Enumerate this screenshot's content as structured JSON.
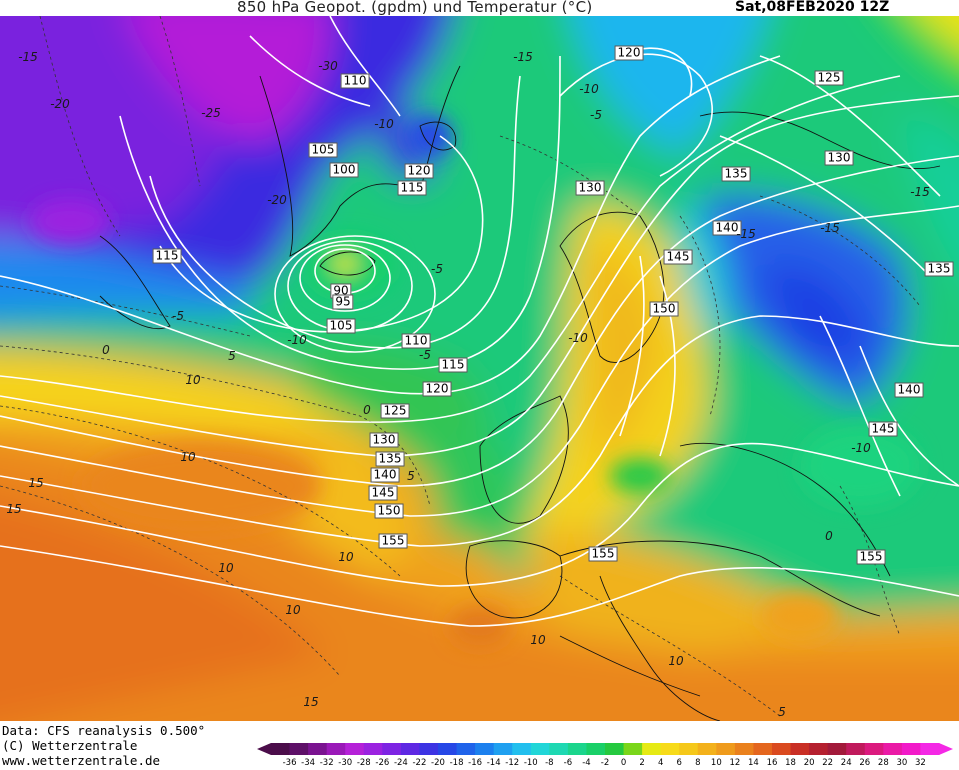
{
  "header": {
    "title": "850 hPa Geopot. (gpdm) und Temperatur (°C)",
    "date": "Sat,08FEB2020 12Z"
  },
  "footer": {
    "line1": "Data: CFS reanalysis 0.500°",
    "line2": "(C) Wetterzentrale",
    "line3": "www.wetterzentrale.de"
  },
  "legend": {
    "ticks": [
      "-36",
      "-34",
      "-32",
      "-30",
      "-28",
      "-26",
      "-24",
      "-22",
      "-20",
      "-18",
      "-16",
      "-14",
      "-12",
      "-10",
      "-8",
      "-6",
      "-4",
      "-2",
      "0",
      "2",
      "4",
      "6",
      "8",
      "10",
      "12",
      "14",
      "16",
      "18",
      "20",
      "22",
      "24",
      "26",
      "28",
      "30",
      "32"
    ],
    "colors": [
      "#4b0d4a",
      "#5e1068",
      "#7a1390",
      "#9a19b8",
      "#b521d8",
      "#9b22e0",
      "#7d24e3",
      "#5e28e3",
      "#3c33e3",
      "#2647e6",
      "#1f63ea",
      "#1c80ee",
      "#1fa0f0",
      "#22bfee",
      "#21d6d8",
      "#1ed8b2",
      "#1bd58c",
      "#19d068",
      "#25c93f",
      "#7ad61a",
      "#e6ea14",
      "#f7db1a",
      "#f5c81a",
      "#f3b11b",
      "#ef9b1c",
      "#ea811d",
      "#e4661e",
      "#da4a1f",
      "#c92f25",
      "#b5202f",
      "#a21a3a",
      "#c01a5c",
      "#db1a7e",
      "#ea1aa6",
      "#f21ac9",
      "#f428e5"
    ]
  },
  "map": {
    "heights": [
      {
        "text": "120",
        "pos": "n-atlantic-120"
      },
      {
        "text": "110",
        "pos": "greenland-110"
      },
      {
        "text": "125",
        "pos": "barents-125"
      },
      {
        "text": "105",
        "pos": "greenland-105"
      },
      {
        "text": "100",
        "pos": "greenland-100"
      },
      {
        "text": "120",
        "pos": "iceland-120"
      },
      {
        "text": "115",
        "pos": "iceland-115"
      },
      {
        "text": "130",
        "pos": "russia-130"
      },
      {
        "text": "135",
        "pos": "finland-135"
      },
      {
        "text": "130",
        "pos": "norway-130"
      },
      {
        "text": "115",
        "pos": "labrador-115"
      },
      {
        "text": "140",
        "pos": "russia-140"
      },
      {
        "text": "145",
        "pos": "baltic-145"
      },
      {
        "text": "135",
        "pos": "urals-135"
      },
      {
        "text": "90",
        "pos": "low-90"
      },
      {
        "text": "95",
        "pos": "low-95"
      },
      {
        "text": "150",
        "pos": "germany-150"
      },
      {
        "text": "105",
        "pos": "atlantic-105"
      },
      {
        "text": "110",
        "pos": "atlantic-110"
      },
      {
        "text": "115",
        "pos": "atlantic-115"
      },
      {
        "text": "120",
        "pos": "atlantic-120"
      },
      {
        "text": "125",
        "pos": "atlantic-125"
      },
      {
        "text": "140",
        "pos": "caspian-140"
      },
      {
        "text": "130",
        "pos": "atlantic-130"
      },
      {
        "text": "145",
        "pos": "caspian-145"
      },
      {
        "text": "135",
        "pos": "atlantic-135"
      },
      {
        "text": "140",
        "pos": "atlantic-140"
      },
      {
        "text": "145",
        "pos": "atlantic-145"
      },
      {
        "text": "150",
        "pos": "atlantic-150"
      },
      {
        "text": "155",
        "pos": "iberia-155"
      },
      {
        "text": "155",
        "pos": "med-155"
      },
      {
        "text": "155",
        "pos": "mideast-155"
      }
    ],
    "temps": [
      {
        "text": "-15",
        "pos": "t1"
      },
      {
        "text": "-30",
        "pos": "t2"
      },
      {
        "text": "-20",
        "pos": "t3"
      },
      {
        "text": "-25",
        "pos": "t4"
      },
      {
        "text": "-10",
        "pos": "t5"
      },
      {
        "text": "-15",
        "pos": "t6"
      },
      {
        "text": "-10",
        "pos": "t7"
      },
      {
        "text": "-5",
        "pos": "t8"
      },
      {
        "text": "-20",
        "pos": "t9"
      },
      {
        "text": "-15",
        "pos": "t10"
      },
      {
        "text": "-15",
        "pos": "t11"
      },
      {
        "text": "-5",
        "pos": "t12"
      },
      {
        "text": "-10",
        "pos": "t13"
      },
      {
        "text": "-5",
        "pos": "t14"
      },
      {
        "text": "0",
        "pos": "t15"
      },
      {
        "text": "5",
        "pos": "t16"
      },
      {
        "text": "10",
        "pos": "t17"
      },
      {
        "text": "0",
        "pos": "t18"
      },
      {
        "text": "10",
        "pos": "t19"
      },
      {
        "text": "15",
        "pos": "t20"
      },
      {
        "text": "15",
        "pos": "t21"
      },
      {
        "text": "5",
        "pos": "t22"
      },
      {
        "text": "10",
        "pos": "t23"
      },
      {
        "text": "10",
        "pos": "t24"
      },
      {
        "text": "10",
        "pos": "t25"
      },
      {
        "text": "10",
        "pos": "t26"
      },
      {
        "text": "15",
        "pos": "t27"
      },
      {
        "text": "10",
        "pos": "t28"
      },
      {
        "text": "5",
        "pos": "t29"
      },
      {
        "text": "-15",
        "pos": "t30"
      },
      {
        "text": "0",
        "pos": "t31"
      },
      {
        "text": "-5",
        "pos": "t32"
      },
      {
        "text": "-10",
        "pos": "t33"
      },
      {
        "text": "-10",
        "pos": "t34"
      }
    ]
  }
}
